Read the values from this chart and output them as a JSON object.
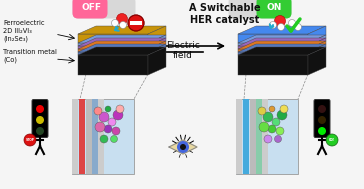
{
  "title": "A Switchable\nHER catalyst",
  "off_label": "OFF",
  "on_label": "ON",
  "electric_field_label": "Electric\nfield",
  "ferroelectric_label": "Ferroelectric\n2D III₂VI₃\n(In₂Se₃)",
  "transition_metal_label": "Transition metal\n(Co)",
  "bg_color": "#f5f5f5",
  "off_pill_color": "#ff6699",
  "on_pill_color": "#33cc33",
  "slab_gold": "#c8940a",
  "slab_blue1": "#5577cc",
  "slab_purple": "#9966bb",
  "slab_orange": "#dd7722",
  "slab_blue2": "#4466aa",
  "slab_rainbow": "#e8c050",
  "slab_black": "#111111",
  "teal_arrow": "#22aacc",
  "stop_red": "#dd1111",
  "go_green": "#22cc22"
}
